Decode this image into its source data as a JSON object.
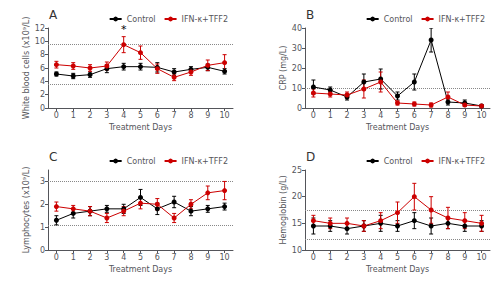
{
  "chart_data": [
    {
      "type": "line",
      "title": "A",
      "xlabel": "Treatment Days",
      "ylabel": "White blood cells (x10⁹/L)",
      "x": [
        0,
        1,
        2,
        3,
        4,
        5,
        6,
        7,
        8,
        9,
        10
      ],
      "series": [
        {
          "name": "Control",
          "color": "#000000",
          "marker": "circle",
          "values": [
            5.1,
            4.8,
            5.0,
            5.9,
            6.2,
            6.2,
            6.1,
            5.4,
            5.8,
            6.1,
            5.5
          ],
          "errors": [
            0.3,
            0.4,
            0.4,
            0.6,
            0.5,
            0.5,
            0.7,
            0.5,
            0.4,
            0.5,
            0.4
          ]
        },
        {
          "name": "IFN-κ+TFF2",
          "color": "#cc0000",
          "marker": "circle",
          "values": [
            6.5,
            6.3,
            6.0,
            6.3,
            9.5,
            8.3,
            5.9,
            4.6,
            5.4,
            6.4,
            6.8
          ],
          "errors": [
            0.5,
            0.5,
            0.5,
            0.6,
            1.2,
            1.0,
            0.7,
            0.5,
            0.5,
            0.8,
            1.2
          ]
        }
      ],
      "xlim": [
        -0.5,
        10.5
      ],
      "xticks": [
        0,
        1,
        2,
        3,
        4,
        5,
        6,
        7,
        8,
        9,
        10
      ],
      "ylim": [
        0,
        12
      ],
      "yticks": [
        0,
        2,
        4,
        6,
        8,
        10,
        12
      ],
      "hlines": [
        3.5,
        9.5
      ],
      "annotations": [
        {
          "text": "*",
          "x": 4,
          "y": 10.9
        }
      ],
      "legend": "upper right",
      "grid": false
    },
    {
      "type": "line",
      "title": "B",
      "xlabel": "Treatment Days",
      "ylabel": "CRP (mg/L)",
      "x": [
        0,
        1,
        2,
        3,
        4,
        5,
        6,
        7,
        8,
        9,
        10
      ],
      "series": [
        {
          "name": "Control",
          "color": "#000000",
          "marker": "circle",
          "values": [
            10.5,
            9.0,
            5.5,
            13.0,
            14.5,
            6.0,
            13.0,
            34.0,
            3.0,
            2.5,
            1.0
          ],
          "errors": [
            3.5,
            1.5,
            1.5,
            4.0,
            5.0,
            2.0,
            4.0,
            6.0,
            1.5,
            1.5,
            0.5
          ]
        },
        {
          "name": "IFN-κ+TFF2",
          "color": "#cc0000",
          "marker": "circle",
          "values": [
            7.5,
            7.0,
            6.5,
            9.5,
            13.0,
            2.5,
            2.0,
            1.5,
            5.5,
            1.5,
            1.0
          ],
          "errors": [
            2.0,
            1.5,
            1.5,
            4.5,
            5.0,
            1.0,
            1.0,
            1.0,
            2.5,
            0.5,
            0.5
          ]
        }
      ],
      "xlim": [
        -0.5,
        10.5
      ],
      "xticks": [
        0,
        1,
        2,
        3,
        4,
        5,
        6,
        7,
        8,
        9,
        10
      ],
      "ylim": [
        0,
        40
      ],
      "yticks": [
        0,
        10,
        20,
        30,
        40
      ],
      "hlines": [
        10.0
      ],
      "legend": "upper right",
      "grid": false
    },
    {
      "type": "line",
      "title": "C",
      "xlabel": "Treatment Days",
      "ylabel": "Lymphocytes (x10⁹/L)",
      "x": [
        0,
        1,
        2,
        3,
        4,
        5,
        6,
        7,
        8,
        9,
        10
      ],
      "series": [
        {
          "name": "Control",
          "color": "#000000",
          "marker": "circle",
          "values": [
            1.3,
            1.6,
            1.7,
            1.8,
            1.8,
            2.3,
            1.8,
            2.1,
            1.7,
            1.8,
            1.9
          ],
          "errors": [
            0.2,
            0.2,
            0.2,
            0.15,
            0.2,
            0.35,
            0.25,
            0.25,
            0.2,
            0.15,
            0.15
          ]
        },
        {
          "name": "IFN-κ+TFF2",
          "color": "#cc0000",
          "marker": "circle",
          "values": [
            1.9,
            1.8,
            1.7,
            1.4,
            1.7,
            2.05,
            2.0,
            1.4,
            2.0,
            2.5,
            2.6
          ],
          "errors": [
            0.2,
            0.15,
            0.2,
            0.2,
            0.2,
            0.25,
            0.25,
            0.2,
            0.2,
            0.3,
            0.4
          ]
        }
      ],
      "xlim": [
        -0.5,
        10.5
      ],
      "xticks": [
        0,
        1,
        2,
        3,
        4,
        5,
        6,
        7,
        8,
        9,
        10
      ],
      "ylim": [
        0,
        3.5
      ],
      "yticks": [
        0,
        1,
        2,
        3
      ],
      "hlines": [
        1.1,
        3.0
      ],
      "legend": "upper right",
      "grid": false
    },
    {
      "type": "line",
      "title": "D",
      "xlabel": "Treatment Days",
      "ylabel": "Hemoglobin (g/L)",
      "x": [
        0,
        1,
        2,
        3,
        4,
        5,
        6,
        7,
        8,
        9,
        10
      ],
      "series": [
        {
          "name": "Control",
          "color": "#000000",
          "marker": "circle",
          "values": [
            14.5,
            14.5,
            14.0,
            14.5,
            15.0,
            14.5,
            15.5,
            14.5,
            15.0,
            14.5,
            14.5
          ],
          "errors": [
            1.5,
            1.0,
            1.0,
            1.0,
            1.5,
            1.0,
            1.5,
            1.5,
            1.0,
            1.0,
            1.0
          ]
        },
        {
          "name": "IFN-κ+TFF2",
          "color": "#cc0000",
          "marker": "circle",
          "values": [
            15.5,
            15.0,
            15.0,
            14.5,
            15.5,
            17.0,
            20.0,
            17.5,
            16.0,
            15.5,
            15.0
          ],
          "errors": [
            1.0,
            1.0,
            1.0,
            1.0,
            1.5,
            2.0,
            2.5,
            2.5,
            2.0,
            1.5,
            1.5
          ]
        }
      ],
      "xlim": [
        -0.5,
        10.5
      ],
      "xticks": [
        0,
        1,
        2,
        3,
        4,
        5,
        6,
        7,
        8,
        9,
        10
      ],
      "ylim": [
        10,
        25
      ],
      "yticks": [
        10,
        15,
        20,
        25
      ],
      "hlines": [
        12.0,
        17.5
      ],
      "legend": "upper right",
      "grid": false
    }
  ]
}
